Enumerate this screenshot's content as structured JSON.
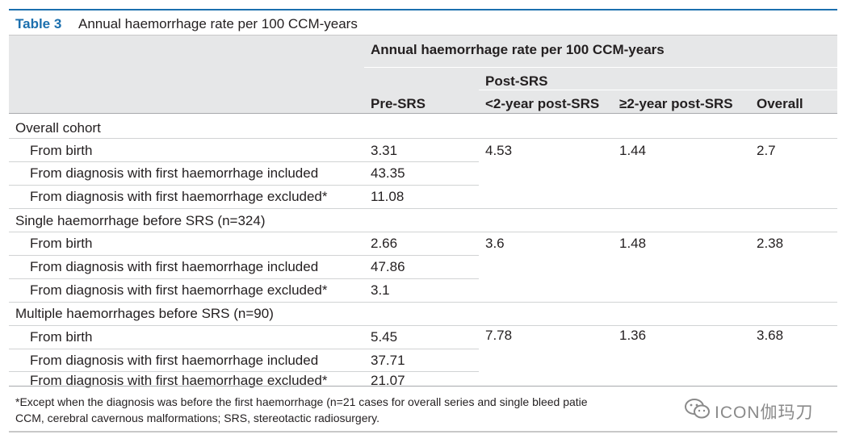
{
  "table": {
    "label": "Table 3",
    "title": "Annual haemorrhage rate per 100 CCM-years",
    "header_main": "Annual haemorrhage rate per 100 CCM-years",
    "header_post": "Post-SRS",
    "columns": [
      "Pre-SRS",
      "<2-year post-SRS",
      "≥2-year post-SRS",
      "Overall"
    ],
    "groups": [
      {
        "name": "Overall cohort",
        "rows": [
          {
            "label": "From birth",
            "pre": "3.31"
          },
          {
            "label": "From diagnosis with first haemorrhage included",
            "pre": "43.35"
          },
          {
            "label": "From diagnosis with first haemorrhage excluded*",
            "pre": "11.08"
          }
        ],
        "post_lt2": "4.53",
        "post_ge2": "1.44",
        "overall": "2.7"
      },
      {
        "name": "Single haemorrhage before SRS (n=324)",
        "rows": [
          {
            "label": "From birth",
            "pre": "2.66"
          },
          {
            "label": "From diagnosis with first haemorrhage included",
            "pre": "47.86"
          },
          {
            "label": "From diagnosis with first haemorrhage excluded*",
            "pre": "3.1"
          }
        ],
        "post_lt2": "3.6",
        "post_ge2": "1.48",
        "overall": "2.38"
      },
      {
        "name": "Multiple haemorrhages before SRS (n=90)",
        "rows": [
          {
            "label": "From birth",
            "pre": "5.45"
          },
          {
            "label": "From diagnosis with first haemorrhage included",
            "pre": "37.71"
          },
          {
            "label": "From diagnosis with first haemorrhage excluded*",
            "pre": "21.07"
          }
        ],
        "post_lt2": "7.78",
        "post_ge2": "1.36",
        "overall": "3.68"
      }
    ],
    "footnote_line1": "*Except when the diagnosis was before the first haemorrhage (n=21 cases for overall series and single bleed patie",
    "footnote_line2": "CCM, cerebral cavernous malformations; SRS, stereotactic radiosurgery."
  },
  "watermark": {
    "text": "ICON伽玛刀",
    "icon": "wechat-icon"
  },
  "colors": {
    "accent": "#1b6fae",
    "header_bg": "#e6e7e8"
  }
}
